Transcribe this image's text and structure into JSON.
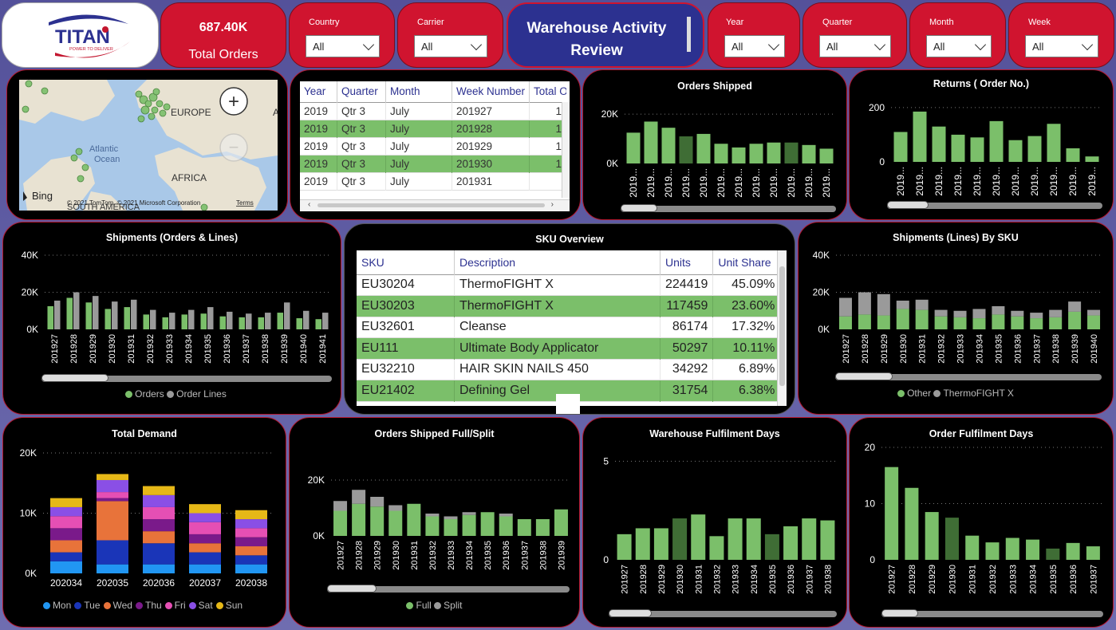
{
  "logo": {
    "brand": "TITAN",
    "tagline": "POWER TO DELIVER"
  },
  "kpi": {
    "value": "687.40K",
    "label": "Total Orders"
  },
  "title": {
    "line1": "Warehouse Activity",
    "line2": "Review"
  },
  "slicers": [
    {
      "label": "Country",
      "value": "All"
    },
    {
      "label": "Carrier",
      "value": "All"
    },
    {
      "label": "Year",
      "value": "All"
    },
    {
      "label": "Quarter",
      "value": "All"
    },
    {
      "label": "Month",
      "value": "All"
    },
    {
      "label": "Week",
      "value": "All"
    }
  ],
  "map": {
    "labels": {
      "europe": "EUROPE",
      "atlantic": "Atlantic",
      "ocean": "Ocean",
      "africa": "AFRICA",
      "south_america": "SOUTH AMERICA"
    },
    "attribution": "© 2021 TomTom, © 2021 Microsoft Corporation",
    "terms": "Terms",
    "bing": "Bing",
    "zoom_in": "+",
    "zoom_out": "−"
  },
  "week_table": {
    "headers": [
      "Year",
      "Quarter",
      "Month",
      "Week Number",
      "Total O"
    ],
    "rows": [
      [
        "2019",
        "Qtr 3",
        "July",
        "201927",
        "1"
      ],
      [
        "2019",
        "Qtr 3",
        "July",
        "201928",
        "1"
      ],
      [
        "2019",
        "Qtr 3",
        "July",
        "201929",
        "1"
      ],
      [
        "2019",
        "Qtr 3",
        "July",
        "201930",
        "1"
      ],
      [
        "2019",
        "Qtr 3",
        "July",
        "201931",
        ""
      ]
    ]
  },
  "sku_table": {
    "title": "SKU Overview",
    "headers": [
      "SKU",
      "Description",
      "Units",
      "Unit Share"
    ],
    "rows": [
      [
        "EU30204",
        "ThermoFIGHT X",
        "224419",
        "45.09%"
      ],
      [
        "EU30203",
        "ThermoFIGHT X",
        "117459",
        "23.60%"
      ],
      [
        "EU32601",
        "Cleanse",
        "86174",
        "17.32%"
      ],
      [
        "EU111",
        "Ultimate Body Applicator",
        "50297",
        "10.11%"
      ],
      [
        "EU32210",
        "HAIR SKIN NAILS 450",
        "34292",
        "6.89%"
      ],
      [
        "EU21402",
        "Defining Gel",
        "31754",
        "6.38%"
      ]
    ]
  },
  "colors": {
    "green": "#7bbf6a",
    "dark_green": "#3f6d35",
    "grey": "#9a9a9a",
    "red": "#d0142f",
    "navy": "#2c3190"
  },
  "chart_data": [
    {
      "id": "orders_shipped",
      "type": "bar",
      "title": "Orders Shipped",
      "categories": [
        "2019...",
        "2019...",
        "2019...",
        "2019...",
        "2019...",
        "2019...",
        "2019...",
        "2019...",
        "2019...",
        "2019...",
        "2019...",
        "2019..."
      ],
      "series": [
        {
          "values": [
            12500,
            17000,
            14500,
            11000,
            12000,
            8000,
            6500,
            8000,
            8500,
            8500,
            7500,
            6000
          ]
        }
      ],
      "highlight": [
        3,
        9
      ],
      "yticks": [
        {
          "v": 0,
          "t": "0K"
        },
        {
          "v": 20000,
          "t": "20K"
        }
      ],
      "ylim": [
        0,
        22000
      ]
    },
    {
      "id": "returns",
      "type": "bar",
      "title": "Returns ( Order No.)",
      "categories": [
        "2019...",
        "2019...",
        "2019...",
        "2019...",
        "2019...",
        "2019...",
        "2019...",
        "2019...",
        "2019...",
        "2019...",
        "2019..."
      ],
      "series": [
        {
          "values": [
            110,
            185,
            130,
            100,
            90,
            150,
            80,
            95,
            140,
            50,
            20
          ]
        }
      ],
      "yticks": [
        {
          "v": 0,
          "t": "0"
        },
        {
          "v": 200,
          "t": "200"
        }
      ],
      "ylim": [
        0,
        220
      ]
    },
    {
      "id": "shipments",
      "type": "bar",
      "title": "Shipments (Orders & Lines)",
      "categories": [
        "201927",
        "201928",
        "201929",
        "201930",
        "201931",
        "201932",
        "201933",
        "201934",
        "201935",
        "201936",
        "201937",
        "201938",
        "201939",
        "201940",
        "201941"
      ],
      "series": [
        {
          "name": "Orders",
          "values": [
            12500,
            17000,
            14500,
            11000,
            12000,
            8000,
            6500,
            8000,
            8500,
            7000,
            6500,
            6500,
            9000,
            6000,
            5500
          ]
        },
        {
          "name": "Order Lines",
          "values": [
            15500,
            20000,
            18000,
            15000,
            16000,
            10500,
            9000,
            10500,
            12000,
            9500,
            8500,
            9000,
            14500,
            10000,
            9000
          ]
        }
      ],
      "yticks": [
        {
          "v": 0,
          "t": "0K"
        },
        {
          "v": 20000,
          "t": "20K"
        },
        {
          "v": 40000,
          "t": "40K"
        }
      ],
      "ylim": [
        0,
        40000
      ]
    },
    {
      "id": "lines_by_sku",
      "type": "bar",
      "title": "Shipments (Lines) By SKU",
      "categories": [
        "201927",
        "201928",
        "201929",
        "201930",
        "201931",
        "201932",
        "201933",
        "201934",
        "201935",
        "201936",
        "201937",
        "201938",
        "201939",
        "201940"
      ],
      "series": [
        {
          "name": "Other",
          "values": [
            7000,
            8000,
            7500,
            11000,
            10500,
            7000,
            6500,
            6000,
            8000,
            7000,
            6000,
            6500,
            9500,
            7500
          ]
        },
        {
          "name": "ThermoFIGHT X",
          "values": [
            10000,
            12000,
            11500,
            4500,
            5500,
            3500,
            3500,
            5000,
            4500,
            3000,
            3000,
            4000,
            5500,
            3000
          ]
        }
      ],
      "yticks": [
        {
          "v": 0,
          "t": "0K"
        },
        {
          "v": 20000,
          "t": "20K"
        },
        {
          "v": 40000,
          "t": "40K"
        }
      ],
      "ylim": [
        0,
        40000
      ]
    },
    {
      "id": "total_demand",
      "type": "bar",
      "title": "Total Demand",
      "categories": [
        "202034",
        "202035",
        "202036",
        "202037",
        "202038"
      ],
      "series": [
        {
          "name": "Mon",
          "values": [
            2000,
            1500,
            1500,
            1500,
            1500
          ]
        },
        {
          "name": "Tue",
          "values": [
            1500,
            4000,
            3500,
            2000,
            1500
          ]
        },
        {
          "name": "Wed",
          "values": [
            2000,
            6500,
            2000,
            1500,
            1500
          ]
        },
        {
          "name": "Thu",
          "values": [
            2000,
            500,
            2000,
            1500,
            1500
          ]
        },
        {
          "name": "Fri",
          "values": [
            2000,
            1000,
            2000,
            2000,
            1500
          ]
        },
        {
          "name": "Sat",
          "values": [
            1500,
            2000,
            2000,
            1500,
            1500
          ]
        },
        {
          "name": "Sun",
          "values": [
            1500,
            1000,
            1500,
            1500,
            1500
          ]
        }
      ],
      "yticks": [
        {
          "v": 0,
          "t": "0K"
        },
        {
          "v": 10000,
          "t": "10K"
        },
        {
          "v": 20000,
          "t": "20K"
        }
      ],
      "ylim": [
        0,
        20000
      ]
    },
    {
      "id": "full_split",
      "type": "bar",
      "title": "Orders Shipped Full/Split",
      "categories": [
        "201927",
        "201928",
        "201929",
        "201930",
        "201931",
        "201932",
        "201933",
        "201934",
        "201935",
        "201936",
        "201937",
        "201938",
        "201939"
      ],
      "series": [
        {
          "name": "Full",
          "values": [
            9000,
            11500,
            10500,
            9000,
            11500,
            7000,
            6000,
            7500,
            8500,
            7000,
            6000,
            6000,
            9500
          ]
        },
        {
          "name": "Split",
          "values": [
            3500,
            5000,
            3500,
            2000,
            0,
            1000,
            1000,
            1000,
            0,
            1000,
            0,
            0,
            0
          ]
        }
      ],
      "yticks": [
        {
          "v": 0,
          "t": "0K"
        },
        {
          "v": 20000,
          "t": "20K"
        }
      ],
      "ylim": [
        0,
        22000
      ]
    },
    {
      "id": "warehouse_days",
      "type": "bar",
      "title": "Warehouse Fulfilment Days",
      "categories": [
        "201927",
        "201928",
        "201929",
        "201930",
        "201931",
        "201932",
        "201933",
        "201934",
        "201935",
        "201936",
        "201937",
        "201938"
      ],
      "series": [
        {
          "values": [
            1.3,
            1.6,
            1.6,
            2.1,
            2.3,
            1.2,
            2.1,
            2.1,
            1.3,
            1.7,
            2.1,
            2.0
          ]
        }
      ],
      "highlight": [
        3,
        8
      ],
      "yticks": [
        {
          "v": 0,
          "t": "0"
        },
        {
          "v": 5,
          "t": "5"
        }
      ],
      "ylim": [
        0,
        5.5
      ]
    },
    {
      "id": "order_days",
      "type": "bar",
      "title": "Order Fulfilment Days",
      "categories": [
        "201927",
        "201928",
        "201929",
        "201930",
        "201931",
        "201932",
        "201933",
        "201934",
        "201935",
        "201936",
        "201937"
      ],
      "series": [
        {
          "values": [
            16.5,
            12.8,
            8.5,
            7.5,
            4.3,
            3.1,
            3.9,
            3.6,
            2.0,
            3.0,
            2.4
          ]
        }
      ],
      "highlight": [
        3,
        8
      ],
      "yticks": [
        {
          "v": 0,
          "t": "0"
        },
        {
          "v": 10,
          "t": "10"
        },
        {
          "v": 20,
          "t": "20"
        }
      ],
      "ylim": [
        0,
        20
      ]
    }
  ]
}
